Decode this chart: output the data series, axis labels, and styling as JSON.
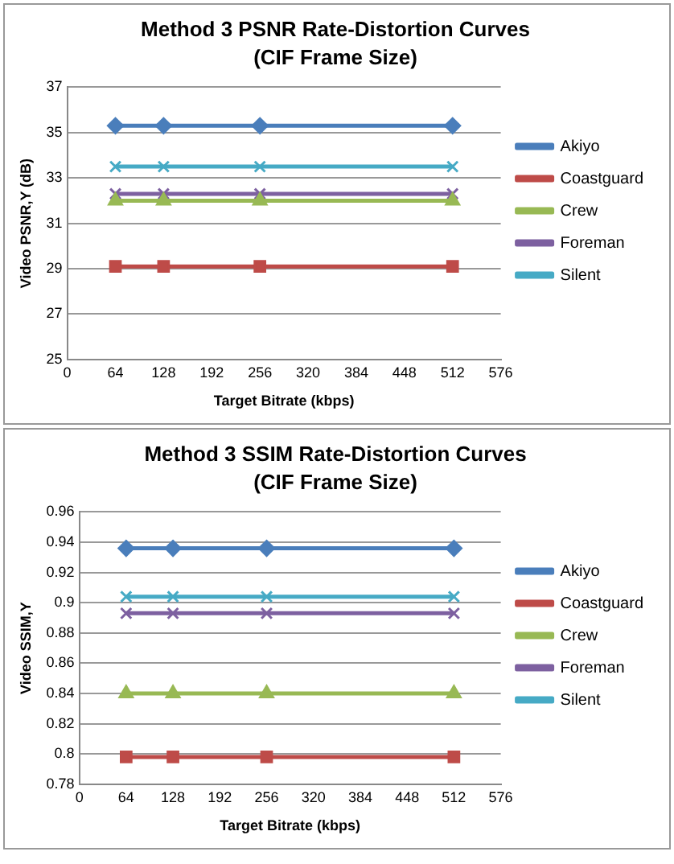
{
  "chart_data": [
    {
      "type": "line",
      "title": "Method 3 PSNR Rate-Distortion Curves",
      "subtitle": "(CIF Frame Size)",
      "xlabel": "Target Bitrate (kbps)",
      "ylabel": "Video PSNR,Y (dB)",
      "x": [
        64,
        128,
        256,
        512
      ],
      "xlim": [
        0,
        576
      ],
      "xticks": [
        0,
        64,
        128,
        192,
        256,
        320,
        384,
        448,
        512,
        576
      ],
      "ylim": [
        25,
        37
      ],
      "yticks": [
        25,
        27,
        29,
        31,
        33,
        35,
        37
      ],
      "grid": "y",
      "legend": "right",
      "series": [
        {
          "name": "Akiyo",
          "color": "#4a7ebb",
          "marker": "diamond",
          "values": [
            35.3,
            35.3,
            35.3,
            35.3
          ]
        },
        {
          "name": "Coastguard",
          "color": "#be4b48",
          "marker": "square",
          "values": [
            29.1,
            29.1,
            29.1,
            29.1
          ]
        },
        {
          "name": "Crew",
          "color": "#98b954",
          "marker": "triangle",
          "values": [
            32.0,
            32.0,
            32.0,
            32.0
          ]
        },
        {
          "name": "Foreman",
          "color": "#7d60a0",
          "marker": "cross",
          "values": [
            32.3,
            32.3,
            32.3,
            32.3
          ]
        },
        {
          "name": "Silent",
          "color": "#46aac5",
          "marker": "cross",
          "values": [
            33.5,
            33.5,
            33.5,
            33.5
          ]
        }
      ]
    },
    {
      "type": "line",
      "title": "Method 3 SSIM Rate-Distortion Curves",
      "subtitle": "(CIF Frame Size)",
      "xlabel": "Target Bitrate (kbps)",
      "ylabel": "Video SSIM,Y",
      "x": [
        64,
        128,
        256,
        512
      ],
      "xlim": [
        0,
        576
      ],
      "xticks": [
        0,
        64,
        128,
        192,
        256,
        320,
        384,
        448,
        512,
        576
      ],
      "ylim": [
        0.78,
        0.96
      ],
      "yticks": [
        0.78,
        0.8,
        0.82,
        0.84,
        0.86,
        0.88,
        0.9,
        0.92,
        0.94,
        0.96
      ],
      "grid": "y",
      "legend": "right",
      "series": [
        {
          "name": "Akiyo",
          "color": "#4a7ebb",
          "marker": "diamond",
          "values": [
            0.936,
            0.936,
            0.936,
            0.936
          ]
        },
        {
          "name": "Coastguard",
          "color": "#be4b48",
          "marker": "square",
          "values": [
            0.798,
            0.798,
            0.798,
            0.798
          ]
        },
        {
          "name": "Crew",
          "color": "#98b954",
          "marker": "triangle",
          "values": [
            0.84,
            0.84,
            0.84,
            0.84
          ]
        },
        {
          "name": "Foreman",
          "color": "#7d60a0",
          "marker": "cross",
          "values": [
            0.893,
            0.893,
            0.893,
            0.893
          ]
        },
        {
          "name": "Silent",
          "color": "#46aac5",
          "marker": "cross",
          "values": [
            0.904,
            0.904,
            0.904,
            0.904
          ]
        }
      ]
    }
  ]
}
